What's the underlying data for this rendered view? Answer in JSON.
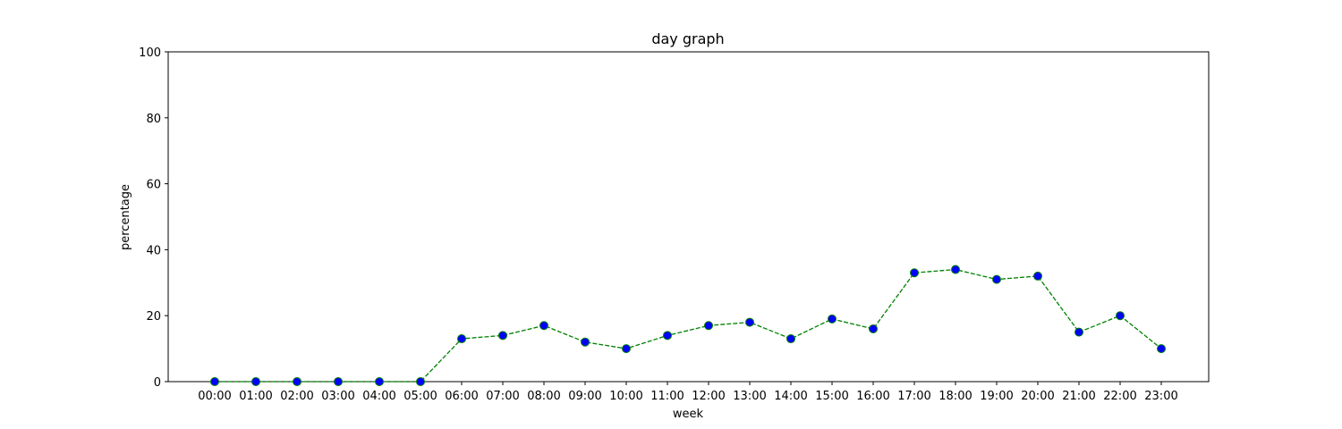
{
  "chart_data": {
    "type": "line",
    "title": "day graph",
    "xlabel": "week",
    "ylabel": "percentage",
    "ylim": [
      0,
      100
    ],
    "yticks": [
      0,
      20,
      40,
      60,
      80,
      100
    ],
    "grid": false,
    "legend": "none",
    "categories": [
      "00:00",
      "01:00",
      "02:00",
      "03:00",
      "04:00",
      "05:00",
      "06:00",
      "07:00",
      "08:00",
      "09:00",
      "10:00",
      "11:00",
      "12:00",
      "13:00",
      "14:00",
      "15:00",
      "16:00",
      "17:00",
      "18:00",
      "19:00",
      "20:00",
      "21:00",
      "22:00",
      "23:00"
    ],
    "values": [
      0,
      0,
      0,
      0,
      0,
      0,
      13,
      14,
      17,
      12,
      10,
      14,
      17,
      18,
      13,
      19,
      16,
      33,
      34,
      31,
      32,
      15,
      20,
      10
    ],
    "line_color": "#008000",
    "line_style": "dashed",
    "marker_face_color": "#0000ff",
    "marker_edge_color": "#008000"
  }
}
